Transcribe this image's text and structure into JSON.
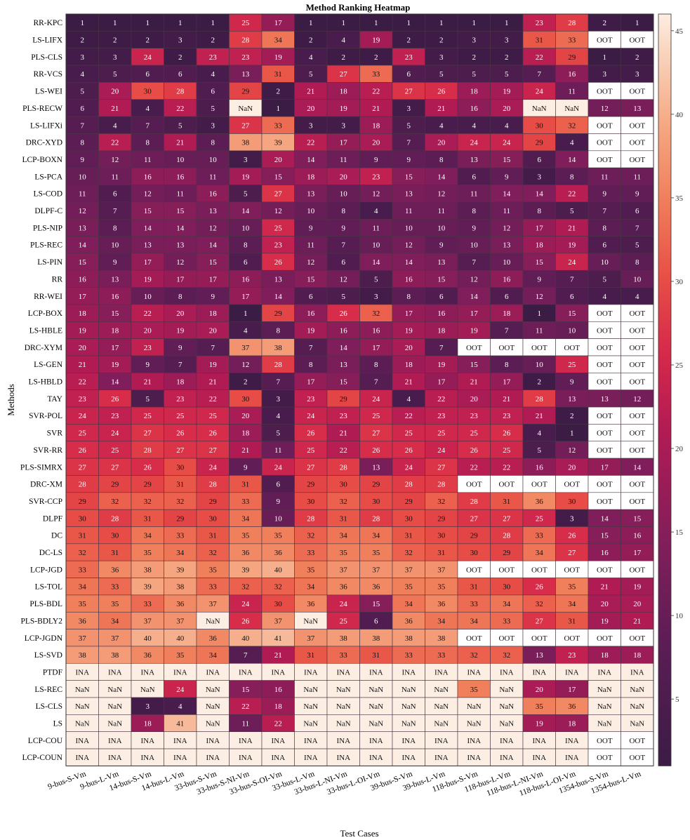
{
  "chart_data": {
    "type": "heatmap",
    "title": "Method Ranking Heatmap",
    "xlabel": "Test Cases",
    "ylabel": "Methods",
    "colorbar": {
      "min": 1,
      "max": 46,
      "ticks": [
        5,
        10,
        15,
        20,
        25,
        30,
        35,
        40,
        45
      ]
    },
    "columns": [
      "9-bus-S-Vm",
      "9-bus-L-Vm",
      "14-bus-S-Vm",
      "14-bus-L-Vm",
      "33-bus-S-Vm",
      "33-bus-S-NI-Vm",
      "33-bus-S-OI-Vm",
      "33-bus-L-Vm",
      "33-bus-L-NI-Vm",
      "33-bus-L-OI-Vm",
      "39-bus-S-Vm",
      "39-bus-L-Vm",
      "118-bus-S-Vm",
      "118-bus-L-Vm",
      "118-bus-L-NI-Vm",
      "118-bus-L-OI-Vm",
      "1354-bus-S-Vm",
      "1354-bus-L-Vm"
    ],
    "rows": [
      {
        "method": "RR-KPC",
        "values": [
          "1",
          "1",
          "1",
          "1",
          "1",
          "25",
          "17",
          "1",
          "1",
          "1",
          "1",
          "1",
          "1",
          "1",
          "23",
          "28",
          "2",
          "1"
        ]
      },
      {
        "method": "LS-LIFX",
        "values": [
          "2",
          "2",
          "2",
          "3",
          "2",
          "28",
          "34",
          "2",
          "4",
          "19",
          "2",
          "2",
          "3",
          "3",
          "31",
          "33",
          "OOT",
          "OOT"
        ]
      },
      {
        "method": "PLS-CLS",
        "values": [
          "3",
          "3",
          "24",
          "2",
          "23",
          "23",
          "19",
          "4",
          "2",
          "2",
          "23",
          "3",
          "2",
          "2",
          "22",
          "29",
          "1",
          "2"
        ]
      },
      {
        "method": "RR-VCS",
        "values": [
          "4",
          "5",
          "6",
          "6",
          "4",
          "13",
          "31",
          "5",
          "27",
          "33",
          "6",
          "5",
          "5",
          "5",
          "7",
          "16",
          "3",
          "3"
        ]
      },
      {
        "method": "LS-WEI",
        "values": [
          "5",
          "20",
          "30",
          "28",
          "6",
          "29",
          "2",
          "21",
          "18",
          "22",
          "27",
          "26",
          "18",
          "19",
          "24",
          "11",
          "OOT",
          "OOT"
        ]
      },
      {
        "method": "PLS-RECW",
        "values": [
          "6",
          "21",
          "4",
          "22",
          "5",
          "NaN",
          "1",
          "20",
          "19",
          "21",
          "3",
          "21",
          "16",
          "20",
          "NaN",
          "NaN",
          "12",
          "13"
        ]
      },
      {
        "method": "LS-LIFXi",
        "values": [
          "7",
          "4",
          "7",
          "5",
          "3",
          "27",
          "33",
          "3",
          "3",
          "18",
          "5",
          "4",
          "4",
          "4",
          "30",
          "32",
          "OOT",
          "OOT"
        ]
      },
      {
        "method": "DRC-XYD",
        "values": [
          "8",
          "22",
          "8",
          "21",
          "8",
          "38",
          "39",
          "22",
          "17",
          "20",
          "7",
          "20",
          "24",
          "24",
          "29",
          "4",
          "OOT",
          "OOT"
        ]
      },
      {
        "method": "LCP-BOXN",
        "values": [
          "9",
          "12",
          "11",
          "10",
          "10",
          "3",
          "20",
          "14",
          "11",
          "9",
          "9",
          "8",
          "13",
          "15",
          "6",
          "14",
          "OOT",
          "OOT"
        ]
      },
      {
        "method": "LS-PCA",
        "values": [
          "10",
          "11",
          "16",
          "16",
          "11",
          "19",
          "15",
          "18",
          "20",
          "23",
          "15",
          "14",
          "6",
          "9",
          "3",
          "8",
          "11",
          "11"
        ]
      },
      {
        "method": "LS-COD",
        "values": [
          "11",
          "6",
          "12",
          "11",
          "16",
          "5",
          "27",
          "13",
          "10",
          "12",
          "13",
          "12",
          "11",
          "14",
          "14",
          "22",
          "9",
          "9"
        ]
      },
      {
        "method": "DLPF-C",
        "values": [
          "12",
          "7",
          "15",
          "15",
          "13",
          "14",
          "12",
          "10",
          "8",
          "4",
          "11",
          "11",
          "8",
          "11",
          "8",
          "5",
          "7",
          "6"
        ]
      },
      {
        "method": "PLS-NIP",
        "values": [
          "13",
          "8",
          "14",
          "14",
          "12",
          "10",
          "25",
          "9",
          "9",
          "11",
          "10",
          "10",
          "9",
          "12",
          "17",
          "21",
          "8",
          "7"
        ]
      },
      {
        "method": "PLS-REC",
        "values": [
          "14",
          "10",
          "13",
          "13",
          "14",
          "8",
          "23",
          "11",
          "7",
          "10",
          "12",
          "9",
          "10",
          "13",
          "18",
          "19",
          "6",
          "5"
        ]
      },
      {
        "method": "LS-PIN",
        "values": [
          "15",
          "9",
          "17",
          "12",
          "15",
          "6",
          "26",
          "12",
          "6",
          "14",
          "14",
          "13",
          "7",
          "10",
          "15",
          "24",
          "10",
          "8"
        ]
      },
      {
        "method": "RR",
        "values": [
          "16",
          "13",
          "19",
          "17",
          "17",
          "16",
          "13",
          "15",
          "12",
          "5",
          "16",
          "15",
          "12",
          "16",
          "9",
          "7",
          "5",
          "10"
        ]
      },
      {
        "method": "RR-WEI",
        "values": [
          "17",
          "16",
          "10",
          "8",
          "9",
          "17",
          "14",
          "6",
          "5",
          "3",
          "8",
          "6",
          "14",
          "6",
          "12",
          "6",
          "4",
          "4"
        ]
      },
      {
        "method": "LCP-BOX",
        "values": [
          "18",
          "15",
          "22",
          "20",
          "18",
          "1",
          "29",
          "16",
          "26",
          "32",
          "17",
          "16",
          "17",
          "18",
          "1",
          "15",
          "OOT",
          "OOT"
        ]
      },
      {
        "method": "LS-HBLE",
        "values": [
          "19",
          "18",
          "20",
          "19",
          "20",
          "4",
          "8",
          "19",
          "16",
          "16",
          "19",
          "18",
          "19",
          "7",
          "11",
          "10",
          "OOT",
          "OOT"
        ]
      },
      {
        "method": "DRC-XYM",
        "values": [
          "20",
          "17",
          "23",
          "9",
          "7",
          "37",
          "38",
          "7",
          "14",
          "17",
          "20",
          "7",
          "OOT",
          "OOT",
          "OOT",
          "OOT",
          "OOT",
          "OOT"
        ]
      },
      {
        "method": "LS-GEN",
        "values": [
          "21",
          "19",
          "9",
          "7",
          "19",
          "12",
          "28",
          "8",
          "13",
          "8",
          "18",
          "19",
          "15",
          "8",
          "10",
          "25",
          "OOT",
          "OOT"
        ]
      },
      {
        "method": "LS-HBLD",
        "values": [
          "22",
          "14",
          "21",
          "18",
          "21",
          "2",
          "7",
          "17",
          "15",
          "7",
          "21",
          "17",
          "21",
          "17",
          "2",
          "9",
          "OOT",
          "OOT"
        ]
      },
      {
        "method": "TAY",
        "values": [
          "23",
          "26",
          "5",
          "23",
          "22",
          "30",
          "3",
          "23",
          "29",
          "24",
          "4",
          "22",
          "20",
          "21",
          "28",
          "13",
          "13",
          "12"
        ]
      },
      {
        "method": "SVR-POL",
        "values": [
          "24",
          "23",
          "25",
          "25",
          "25",
          "20",
          "4",
          "24",
          "23",
          "25",
          "22",
          "23",
          "23",
          "23",
          "21",
          "2",
          "OOT",
          "OOT"
        ]
      },
      {
        "method": "SVR",
        "values": [
          "25",
          "24",
          "27",
          "26",
          "26",
          "18",
          "5",
          "26",
          "21",
          "27",
          "25",
          "25",
          "25",
          "26",
          "4",
          "1",
          "OOT",
          "OOT"
        ]
      },
      {
        "method": "SVR-RR",
        "values": [
          "26",
          "25",
          "28",
          "27",
          "27",
          "21",
          "11",
          "25",
          "22",
          "26",
          "26",
          "24",
          "26",
          "25",
          "5",
          "12",
          "OOT",
          "OOT"
        ]
      },
      {
        "method": "PLS-SIMRX",
        "values": [
          "27",
          "27",
          "26",
          "30",
          "24",
          "9",
          "24",
          "27",
          "28",
          "13",
          "24",
          "27",
          "22",
          "22",
          "16",
          "20",
          "17",
          "14"
        ]
      },
      {
        "method": "DRC-XM",
        "values": [
          "28",
          "29",
          "29",
          "31",
          "28",
          "31",
          "6",
          "29",
          "30",
          "29",
          "28",
          "28",
          "OOT",
          "OOT",
          "OOT",
          "OOT",
          "OOT",
          "OOT"
        ]
      },
      {
        "method": "SVR-CCP",
        "values": [
          "29",
          "32",
          "32",
          "32",
          "29",
          "33",
          "9",
          "30",
          "32",
          "30",
          "29",
          "32",
          "28",
          "31",
          "36",
          "30",
          "OOT",
          "OOT"
        ]
      },
      {
        "method": "DLPF",
        "values": [
          "30",
          "28",
          "31",
          "29",
          "30",
          "34",
          "10",
          "28",
          "31",
          "28",
          "30",
          "29",
          "27",
          "27",
          "25",
          "3",
          "14",
          "15"
        ]
      },
      {
        "method": "DC",
        "values": [
          "31",
          "30",
          "34",
          "33",
          "31",
          "35",
          "35",
          "32",
          "34",
          "34",
          "31",
          "30",
          "29",
          "28",
          "33",
          "26",
          "15",
          "16"
        ]
      },
      {
        "method": "DC-LS",
        "values": [
          "32",
          "31",
          "35",
          "34",
          "32",
          "36",
          "36",
          "33",
          "35",
          "35",
          "32",
          "31",
          "30",
          "29",
          "34",
          "27",
          "16",
          "17"
        ]
      },
      {
        "method": "LCP-JGD",
        "values": [
          "33",
          "36",
          "38",
          "39",
          "35",
          "39",
          "40",
          "35",
          "37",
          "37",
          "37",
          "37",
          "OOT",
          "OOT",
          "OOT",
          "OOT",
          "OOT",
          "OOT"
        ]
      },
      {
        "method": "LS-TOL",
        "values": [
          "34",
          "33",
          "39",
          "38",
          "33",
          "32",
          "32",
          "34",
          "36",
          "36",
          "35",
          "35",
          "31",
          "30",
          "26",
          "35",
          "21",
          "19"
        ]
      },
      {
        "method": "PLS-BDL",
        "values": [
          "35",
          "35",
          "33",
          "36",
          "37",
          "24",
          "30",
          "36",
          "24",
          "15",
          "34",
          "36",
          "33",
          "34",
          "32",
          "34",
          "20",
          "20"
        ]
      },
      {
        "method": "PLS-BDLY2",
        "values": [
          "36",
          "34",
          "37",
          "37",
          "NaN",
          "26",
          "37",
          "NaN",
          "25",
          "6",
          "36",
          "34",
          "34",
          "33",
          "27",
          "31",
          "19",
          "21"
        ]
      },
      {
        "method": "LCP-JGDN",
        "values": [
          "37",
          "37",
          "40",
          "40",
          "36",
          "40",
          "41",
          "37",
          "38",
          "38",
          "38",
          "38",
          "OOT",
          "OOT",
          "OOT",
          "OOT",
          "OOT",
          "OOT"
        ]
      },
      {
        "method": "LS-SVD",
        "values": [
          "38",
          "38",
          "36",
          "35",
          "34",
          "7",
          "21",
          "31",
          "33",
          "31",
          "33",
          "33",
          "32",
          "32",
          "13",
          "23",
          "18",
          "18"
        ]
      },
      {
        "method": "PTDF",
        "values": [
          "INA",
          "INA",
          "INA",
          "INA",
          "INA",
          "INA",
          "INA",
          "INA",
          "INA",
          "INA",
          "INA",
          "INA",
          "INA",
          "INA",
          "INA",
          "INA",
          "INA",
          "INA"
        ]
      },
      {
        "method": "LS-REC",
        "values": [
          "NaN",
          "NaN",
          "NaN",
          "24",
          "NaN",
          "15",
          "16",
          "NaN",
          "NaN",
          "NaN",
          "NaN",
          "NaN",
          "35",
          "NaN",
          "20",
          "17",
          "NaN",
          "NaN"
        ]
      },
      {
        "method": "LS-CLS",
        "values": [
          "NaN",
          "NaN",
          "3",
          "4",
          "NaN",
          "22",
          "18",
          "NaN",
          "NaN",
          "NaN",
          "NaN",
          "NaN",
          "NaN",
          "NaN",
          "35",
          "36",
          "NaN",
          "NaN"
        ]
      },
      {
        "method": "LS",
        "values": [
          "NaN",
          "NaN",
          "18",
          "41",
          "NaN",
          "11",
          "22",
          "NaN",
          "NaN",
          "NaN",
          "NaN",
          "NaN",
          "NaN",
          "NaN",
          "19",
          "18",
          "NaN",
          "NaN"
        ]
      },
      {
        "method": "LCP-COU",
        "values": [
          "INA",
          "INA",
          "INA",
          "INA",
          "INA",
          "INA",
          "INA",
          "INA",
          "INA",
          "INA",
          "INA",
          "INA",
          "INA",
          "INA",
          "INA",
          "INA",
          "OOT",
          "OOT"
        ]
      },
      {
        "method": "LCP-COUN",
        "values": [
          "INA",
          "INA",
          "INA",
          "INA",
          "INA",
          "INA",
          "INA",
          "INA",
          "INA",
          "INA",
          "INA",
          "INA",
          "INA",
          "INA",
          "INA",
          "INA",
          "OOT",
          "OOT"
        ]
      }
    ],
    "special_colors": {
      "NaN": "#fdeee3",
      "INA": "#fdeee3",
      "OOT": "#ffffff"
    }
  }
}
